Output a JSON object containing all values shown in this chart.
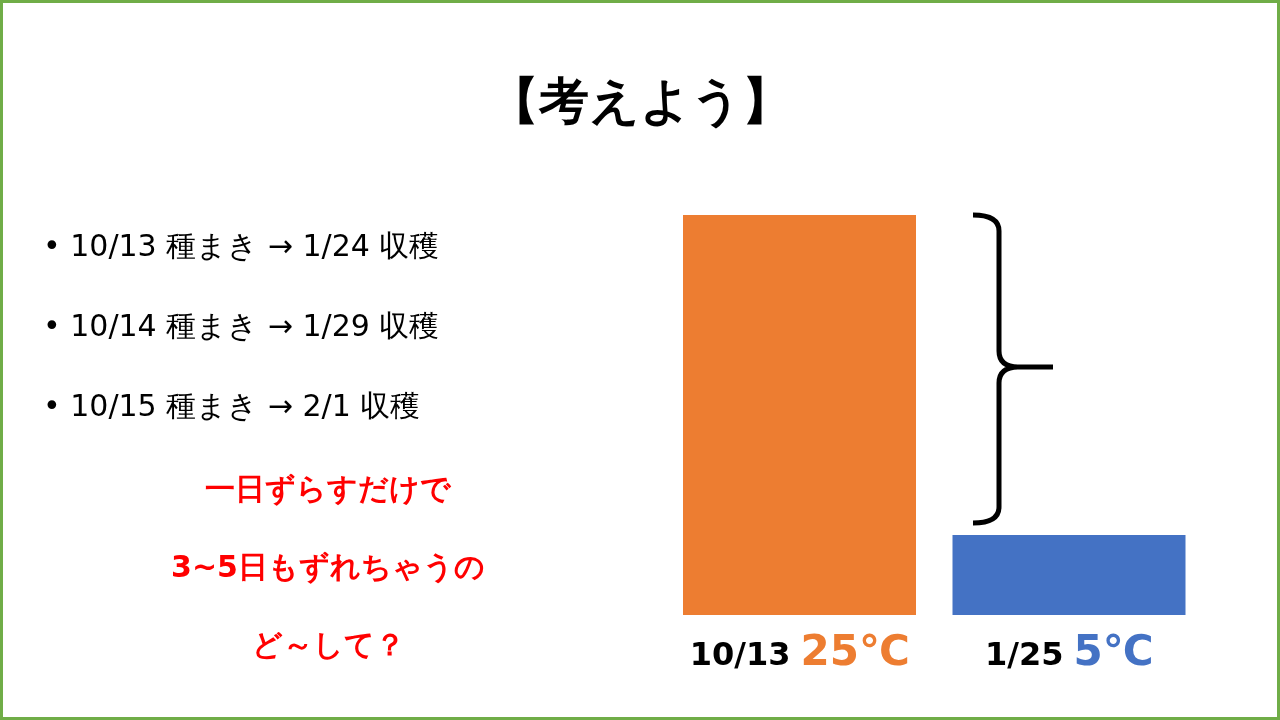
{
  "chart_data": {
    "type": "bar",
    "title": "【考えよう】",
    "categories": [
      "10/13",
      "1/25"
    ],
    "values": [
      25,
      5
    ],
    "colors": [
      "#ed7d31",
      "#4472c4"
    ],
    "value_labels": [
      "25℃",
      "5℃"
    ],
    "grid": false,
    "legend": false,
    "annotations": [
      "• 10/13 種まき → 1/24 収穫",
      "• 10/14 種まき → 1/29 収穫",
      "• 10/15 種まき → 2/1 収穫",
      "一日ずらすだけで",
      "3~5日もずれちゃうの",
      "ど～して？"
    ]
  }
}
